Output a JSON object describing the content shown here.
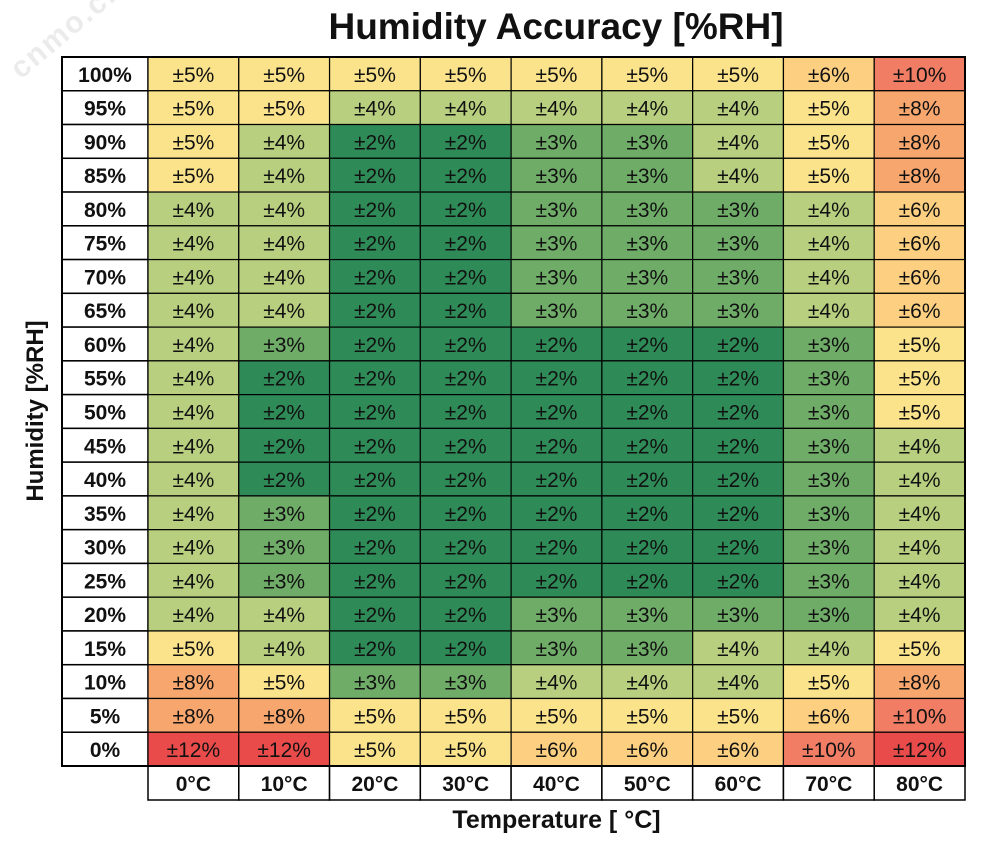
{
  "chart_data": {
    "type": "heatmap",
    "title": "Humidity Accuracy [%RH]",
    "xlabel": "Temperature [ °C]",
    "ylabel": "Humidity [%RH]",
    "x": [
      "0°C",
      "10°C",
      "20°C",
      "30°C",
      "40°C",
      "50°C",
      "60°C",
      "70°C",
      "80°C"
    ],
    "y": [
      "100%",
      "95%",
      "90%",
      "85%",
      "80%",
      "75%",
      "70%",
      "65%",
      "60%",
      "55%",
      "50%",
      "45%",
      "40%",
      "35%",
      "30%",
      "25%",
      "20%",
      "15%",
      "10%",
      "5%",
      "0%"
    ],
    "unit_prefix": "±",
    "unit_suffix": "%",
    "values": [
      [
        5,
        5,
        5,
        5,
        5,
        5,
        5,
        6,
        10
      ],
      [
        5,
        5,
        4,
        4,
        4,
        4,
        4,
        5,
        8
      ],
      [
        5,
        4,
        2,
        2,
        3,
        3,
        4,
        5,
        8
      ],
      [
        5,
        4,
        2,
        2,
        3,
        3,
        4,
        5,
        8
      ],
      [
        4,
        4,
        2,
        2,
        3,
        3,
        3,
        4,
        6
      ],
      [
        4,
        4,
        2,
        2,
        3,
        3,
        3,
        4,
        6
      ],
      [
        4,
        4,
        2,
        2,
        3,
        3,
        3,
        4,
        6
      ],
      [
        4,
        4,
        2,
        2,
        3,
        3,
        3,
        4,
        6
      ],
      [
        4,
        3,
        2,
        2,
        2,
        2,
        2,
        3,
        5
      ],
      [
        4,
        2,
        2,
        2,
        2,
        2,
        2,
        3,
        5
      ],
      [
        4,
        2,
        2,
        2,
        2,
        2,
        2,
        3,
        5
      ],
      [
        4,
        2,
        2,
        2,
        2,
        2,
        2,
        3,
        4
      ],
      [
        4,
        2,
        2,
        2,
        2,
        2,
        2,
        3,
        4
      ],
      [
        4,
        3,
        2,
        2,
        2,
        2,
        2,
        3,
        4
      ],
      [
        4,
        3,
        2,
        2,
        2,
        2,
        2,
        3,
        4
      ],
      [
        4,
        3,
        2,
        2,
        2,
        2,
        2,
        3,
        4
      ],
      [
        4,
        4,
        2,
        2,
        3,
        3,
        3,
        3,
        4
      ],
      [
        5,
        4,
        2,
        2,
        3,
        3,
        4,
        4,
        5
      ],
      [
        8,
        5,
        3,
        3,
        4,
        4,
        4,
        5,
        8
      ],
      [
        8,
        8,
        5,
        5,
        5,
        5,
        5,
        6,
        10
      ],
      [
        12,
        12,
        5,
        5,
        6,
        6,
        6,
        10,
        12
      ]
    ],
    "colors": {
      "2": "#2e8b57",
      "3": "#6fac68",
      "4": "#b8cf7f",
      "5": "#fae38b",
      "6": "#fcd080",
      "8": "#f7a66e",
      "10": "#f17d65",
      "12": "#e94b4b"
    }
  },
  "watermark": "cnmo.cn"
}
